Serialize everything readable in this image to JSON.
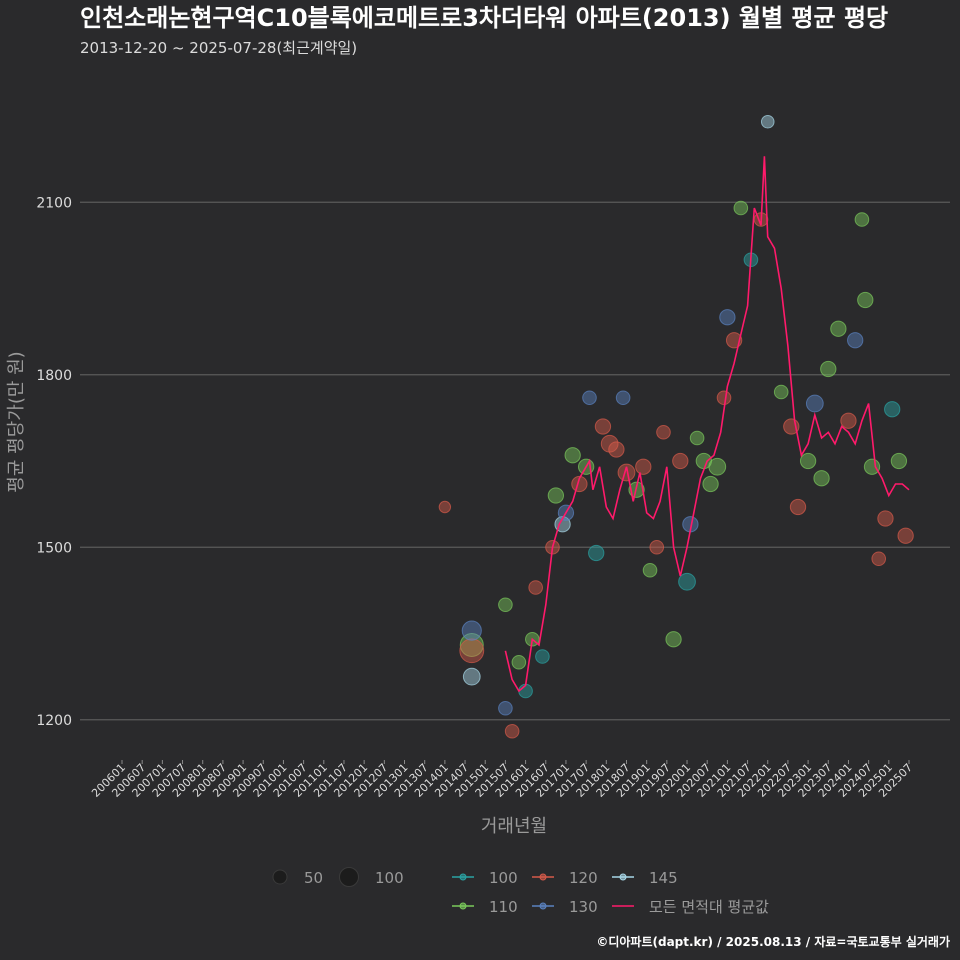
{
  "chart_data": {
    "type": "scatter",
    "title": "인천소래논현구역C10블록에코메트로3차더타워 아파트(2013) 월별 평균 평당",
    "subtitle": "2013-12-20 ~ 2025-07-28(최근계약일)",
    "xlabel": "거래년월",
    "ylabel": "평균 평당가(만 원)",
    "source": "©디아파트(dapt.kr) / 2025.08.13 / 자료=국토교통부 실거래가",
    "ylim": [
      1130,
      2330
    ],
    "yticks": [
      1200,
      1500,
      1800,
      2100
    ],
    "xticks": [
      "200601",
      "200607",
      "200701",
      "200707",
      "200801",
      "200807",
      "200901",
      "200907",
      "201001",
      "201007",
      "201101",
      "201107",
      "201201",
      "201207",
      "201301",
      "201307",
      "201401",
      "201407",
      "201501",
      "201507",
      "201601",
      "201607",
      "201701",
      "201707",
      "201801",
      "201807",
      "201901",
      "201907",
      "202001",
      "202007",
      "202101",
      "202107",
      "202201",
      "202207",
      "202301",
      "202307",
      "202401",
      "202407",
      "202501",
      "202507"
    ],
    "size_legend": [
      {
        "label": "50",
        "size": 50
      },
      {
        "label": "100",
        "size": 100
      }
    ],
    "series": [
      {
        "name": "100",
        "color": "#2aa3a3"
      },
      {
        "name": "110",
        "color": "#7ac95b"
      },
      {
        "name": "120",
        "color": "#d65a4a"
      },
      {
        "name": "130",
        "color": "#5a82c0"
      },
      {
        "name": "145",
        "color": "#a8d8e8"
      },
      {
        "name": "모든 면적대 평균값",
        "color": "#ff1a6b"
      }
    ],
    "points": [
      {
        "x": "201401",
        "y": 1570,
        "s": "120",
        "size": 10
      },
      {
        "x": "201409",
        "y": 1330,
        "s": "110",
        "size": 100
      },
      {
        "x": "201409",
        "y": 1320,
        "s": "120",
        "size": 110
      },
      {
        "x": "201409",
        "y": 1355,
        "s": "130",
        "size": 60
      },
      {
        "x": "201409",
        "y": 1275,
        "s": "145",
        "size": 40
      },
      {
        "x": "201507",
        "y": 1400,
        "s": "110",
        "size": 20
      },
      {
        "x": "201507",
        "y": 1220,
        "s": "130",
        "size": 20
      },
      {
        "x": "201509",
        "y": 1180,
        "s": "120",
        "size": 20
      },
      {
        "x": "201511",
        "y": 1300,
        "s": "110",
        "size": 20
      },
      {
        "x": "201601",
        "y": 1250,
        "s": "100",
        "size": 20
      },
      {
        "x": "201603",
        "y": 1340,
        "s": "110",
        "size": 20
      },
      {
        "x": "201604",
        "y": 1430,
        "s": "120",
        "size": 20
      },
      {
        "x": "201606",
        "y": 1310,
        "s": "100",
        "size": 20
      },
      {
        "x": "201609",
        "y": 1500,
        "s": "120",
        "size": 20
      },
      {
        "x": "201610",
        "y": 1590,
        "s": "110",
        "size": 30
      },
      {
        "x": "201612",
        "y": 1540,
        "s": "145",
        "size": 30
      },
      {
        "x": "201701",
        "y": 1560,
        "s": "130",
        "size": 30
      },
      {
        "x": "201703",
        "y": 1660,
        "s": "110",
        "size": 30
      },
      {
        "x": "201705",
        "y": 1610,
        "s": "120",
        "size": 30
      },
      {
        "x": "201707",
        "y": 1640,
        "s": "110",
        "size": 30
      },
      {
        "x": "201708",
        "y": 1760,
        "s": "130",
        "size": 20
      },
      {
        "x": "201710",
        "y": 1490,
        "s": "100",
        "size": 30
      },
      {
        "x": "201712",
        "y": 1710,
        "s": "120",
        "size": 30
      },
      {
        "x": "201802",
        "y": 1680,
        "s": "120",
        "size": 40
      },
      {
        "x": "201804",
        "y": 1670,
        "s": "120",
        "size": 30
      },
      {
        "x": "201806",
        "y": 1760,
        "s": "130",
        "size": 20
      },
      {
        "x": "201807",
        "y": 1630,
        "s": "120",
        "size": 40
      },
      {
        "x": "201810",
        "y": 1600,
        "s": "110",
        "size": 30
      },
      {
        "x": "201812",
        "y": 1640,
        "s": "120",
        "size": 30
      },
      {
        "x": "201902",
        "y": 1460,
        "s": "110",
        "size": 20
      },
      {
        "x": "201904",
        "y": 1500,
        "s": "120",
        "size": 20
      },
      {
        "x": "201906",
        "y": 1700,
        "s": "120",
        "size": 20
      },
      {
        "x": "201909",
        "y": 1340,
        "s": "110",
        "size": 30
      },
      {
        "x": "201911",
        "y": 1650,
        "s": "120",
        "size": 30
      },
      {
        "x": "202001",
        "y": 1440,
        "s": "100",
        "size": 40
      },
      {
        "x": "202002",
        "y": 1540,
        "s": "130",
        "size": 30
      },
      {
        "x": "202004",
        "y": 1690,
        "s": "110",
        "size": 20
      },
      {
        "x": "202006",
        "y": 1650,
        "s": "110",
        "size": 30
      },
      {
        "x": "202008",
        "y": 1610,
        "s": "110",
        "size": 30
      },
      {
        "x": "202010",
        "y": 1640,
        "s": "110",
        "size": 40
      },
      {
        "x": "202012",
        "y": 1760,
        "s": "120",
        "size": 20
      },
      {
        "x": "202101",
        "y": 1900,
        "s": "130",
        "size": 30
      },
      {
        "x": "202103",
        "y": 1860,
        "s": "120",
        "size": 30
      },
      {
        "x": "202105",
        "y": 2090,
        "s": "110",
        "size": 20
      },
      {
        "x": "202108",
        "y": 2000,
        "s": "100",
        "size": 20
      },
      {
        "x": "202111",
        "y": 2070,
        "s": "120",
        "size": 20
      },
      {
        "x": "202201",
        "y": 2240,
        "s": "145",
        "size": 15
      },
      {
        "x": "202205",
        "y": 1770,
        "s": "110",
        "size": 20
      },
      {
        "x": "202208",
        "y": 1710,
        "s": "120",
        "size": 30
      },
      {
        "x": "202210",
        "y": 1570,
        "s": "120",
        "size": 30
      },
      {
        "x": "202301",
        "y": 1650,
        "s": "110",
        "size": 30
      },
      {
        "x": "202303",
        "y": 1750,
        "s": "130",
        "size": 40
      },
      {
        "x": "202305",
        "y": 1620,
        "s": "110",
        "size": 30
      },
      {
        "x": "202307",
        "y": 1810,
        "s": "110",
        "size": 30
      },
      {
        "x": "202310",
        "y": 1880,
        "s": "110",
        "size": 30
      },
      {
        "x": "202401",
        "y": 1720,
        "s": "120",
        "size": 30
      },
      {
        "x": "202403",
        "y": 1860,
        "s": "130",
        "size": 30
      },
      {
        "x": "202405",
        "y": 2070,
        "s": "110",
        "size": 20
      },
      {
        "x": "202406",
        "y": 1930,
        "s": "110",
        "size": 30
      },
      {
        "x": "202408",
        "y": 1640,
        "s": "110",
        "size": 30
      },
      {
        "x": "202410",
        "y": 1480,
        "s": "120",
        "size": 20
      },
      {
        "x": "202412",
        "y": 1550,
        "s": "120",
        "size": 30
      },
      {
        "x": "202502",
        "y": 1740,
        "s": "100",
        "size": 30
      },
      {
        "x": "202504",
        "y": 1650,
        "s": "110",
        "size": 30
      },
      {
        "x": "202506",
        "y": 1520,
        "s": "120",
        "size": 30
      }
    ],
    "avg_line": [
      {
        "x": "201507",
        "y": 1320
      },
      {
        "x": "201509",
        "y": 1270
      },
      {
        "x": "201511",
        "y": 1250
      },
      {
        "x": "201601",
        "y": 1260
      },
      {
        "x": "201603",
        "y": 1340
      },
      {
        "x": "201605",
        "y": 1330
      },
      {
        "x": "201607",
        "y": 1400
      },
      {
        "x": "201609",
        "y": 1500
      },
      {
        "x": "201611",
        "y": 1540
      },
      {
        "x": "201701",
        "y": 1560
      },
      {
        "x": "201703",
        "y": 1580
      },
      {
        "x": "201705",
        "y": 1620
      },
      {
        "x": "201707",
        "y": 1640
      },
      {
        "x": "201708",
        "y": 1650
      },
      {
        "x": "201709",
        "y": 1600
      },
      {
        "x": "201711",
        "y": 1640
      },
      {
        "x": "201801",
        "y": 1570
      },
      {
        "x": "201803",
        "y": 1550
      },
      {
        "x": "201805",
        "y": 1600
      },
      {
        "x": "201807",
        "y": 1640
      },
      {
        "x": "201809",
        "y": 1580
      },
      {
        "x": "201811",
        "y": 1630
      },
      {
        "x": "201901",
        "y": 1560
      },
      {
        "x": "201903",
        "y": 1550
      },
      {
        "x": "201905",
        "y": 1580
      },
      {
        "x": "201907",
        "y": 1640
      },
      {
        "x": "201909",
        "y": 1500
      },
      {
        "x": "201911",
        "y": 1450
      },
      {
        "x": "202001",
        "y": 1500
      },
      {
        "x": "202003",
        "y": 1560
      },
      {
        "x": "202005",
        "y": 1620
      },
      {
        "x": "202007",
        "y": 1650
      },
      {
        "x": "202009",
        "y": 1660
      },
      {
        "x": "202011",
        "y": 1700
      },
      {
        "x": "202101",
        "y": 1780
      },
      {
        "x": "202103",
        "y": 1820
      },
      {
        "x": "202105",
        "y": 1870
      },
      {
        "x": "202107",
        "y": 1920
      },
      {
        "x": "202109",
        "y": 2090
      },
      {
        "x": "202111",
        "y": 2060
      },
      {
        "x": "202112",
        "y": 2180
      },
      {
        "x": "202201",
        "y": 2040
      },
      {
        "x": "202203",
        "y": 2020
      },
      {
        "x": "202205",
        "y": 1950
      },
      {
        "x": "202207",
        "y": 1850
      },
      {
        "x": "202209",
        "y": 1720
      },
      {
        "x": "202211",
        "y": 1660
      },
      {
        "x": "202301",
        "y": 1680
      },
      {
        "x": "202303",
        "y": 1730
      },
      {
        "x": "202305",
        "y": 1690
      },
      {
        "x": "202307",
        "y": 1700
      },
      {
        "x": "202309",
        "y": 1680
      },
      {
        "x": "202311",
        "y": 1710
      },
      {
        "x": "202401",
        "y": 1700
      },
      {
        "x": "202403",
        "y": 1680
      },
      {
        "x": "202405",
        "y": 1720
      },
      {
        "x": "202407",
        "y": 1750
      },
      {
        "x": "202409",
        "y": 1640
      },
      {
        "x": "202411",
        "y": 1620
      },
      {
        "x": "202501",
        "y": 1590
      },
      {
        "x": "202503",
        "y": 1610
      },
      {
        "x": "202505",
        "y": 1610
      },
      {
        "x": "202507",
        "y": 1600
      }
    ]
  }
}
